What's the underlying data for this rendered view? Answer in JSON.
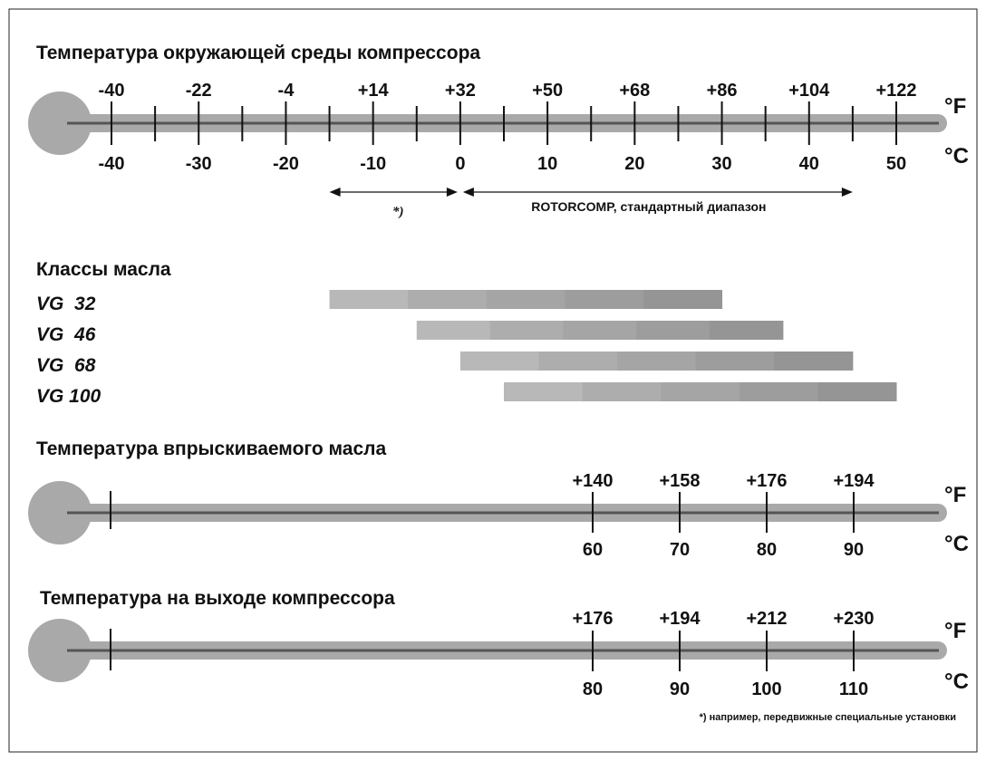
{
  "ambient": {
    "title": "Температура окружающей среды компрессора",
    "f_unit": "°F",
    "c_unit": "°C",
    "f_ticks": [
      "-40",
      "-22",
      "-4",
      "+14",
      "+32",
      "+50",
      "+68",
      "+86",
      "+104",
      "+122"
    ],
    "c_ticks": [
      "-40",
      "-30",
      "-20",
      "-10",
      "0",
      "10",
      "20",
      "30",
      "40",
      "50"
    ],
    "c_values": [
      -40,
      -30,
      -20,
      -10,
      0,
      10,
      20,
      30,
      40,
      50
    ],
    "minor_c_values": [
      -35,
      -25,
      -15,
      -5,
      5,
      15,
      25,
      35,
      45
    ],
    "ranges": [
      {
        "label": "*)",
        "from_c": -15,
        "to_c": 0
      },
      {
        "label": "ROTORCOMP, стандартный диапазон",
        "from_c": 0,
        "to_c": 45
      }
    ]
  },
  "oil_classes": {
    "title": "Классы масла",
    "colors": [
      "#b8b8b8",
      "#adadad",
      "#a5a5a5",
      "#9d9d9d",
      "#959595"
    ],
    "items": [
      {
        "label": "VG  32",
        "from_c": -15,
        "to_c": 30
      },
      {
        "label": "VG  46",
        "from_c": -5,
        "to_c": 37
      },
      {
        "label": "VG  68",
        "from_c": 0,
        "to_c": 45
      },
      {
        "label": "VG 100",
        "from_c": 5,
        "to_c": 50
      }
    ]
  },
  "injected": {
    "title": "Температура впрыскиваемого масла",
    "f_unit": "°F",
    "c_unit": "°C",
    "f_ticks": [
      "+140",
      "+158",
      "+176",
      "+194"
    ],
    "c_ticks": [
      "60",
      "70",
      "80",
      "90"
    ],
    "c_values": [
      60,
      70,
      80,
      90
    ]
  },
  "outlet": {
    "title": "Температура на выходе компрессора",
    "f_unit": "°F",
    "c_unit": "°C",
    "f_ticks": [
      "+176",
      "+194",
      "+212",
      "+230"
    ],
    "c_ticks": [
      "80",
      "90",
      "100",
      "110"
    ],
    "c_values": [
      80,
      90,
      100,
      110
    ]
  },
  "footnote": "*) например, передвижные специальные установки"
}
